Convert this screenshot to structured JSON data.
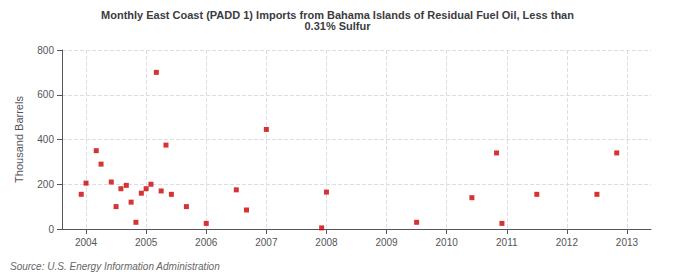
{
  "chart_data": {
    "type": "scatter",
    "title": "Monthly East Coast (PADD 1) Imports from Bahama Islands of Residual Fuel Oil, Less than\n0.31% Sulfur",
    "ylabel": "Thousand Barrels",
    "source": "Source: U.S. Energy Information Administration",
    "color": "#cc0000",
    "marker": "square",
    "grid": true,
    "xlim": [
      2003.6,
      2013.4
    ],
    "xticks": [
      2004,
      2005,
      2006,
      2007,
      2008,
      2009,
      2010,
      2011,
      2012,
      2013
    ],
    "ylim": [
      0,
      800
    ],
    "yticks": [
      0,
      200,
      400,
      600,
      800
    ],
    "x": [
      2003.92,
      2004.0,
      2004.17,
      2004.25,
      2004.42,
      2004.5,
      2004.58,
      2004.67,
      2004.75,
      2004.83,
      2004.92,
      2005.0,
      2005.08,
      2005.17,
      2005.25,
      2005.33,
      2005.42,
      2005.67,
      2006.0,
      2006.5,
      2006.67,
      2007.0,
      2007.92,
      2008.0,
      2009.5,
      2010.42,
      2010.83,
      2010.92,
      2011.5,
      2012.5,
      2012.83
    ],
    "values": [
      155,
      205,
      350,
      290,
      210,
      100,
      180,
      195,
      120,
      30,
      160,
      180,
      200,
      700,
      170,
      375,
      155,
      100,
      25,
      175,
      85,
      445,
      5,
      165,
      30,
      140,
      340,
      25,
      155,
      155,
      340
    ]
  }
}
